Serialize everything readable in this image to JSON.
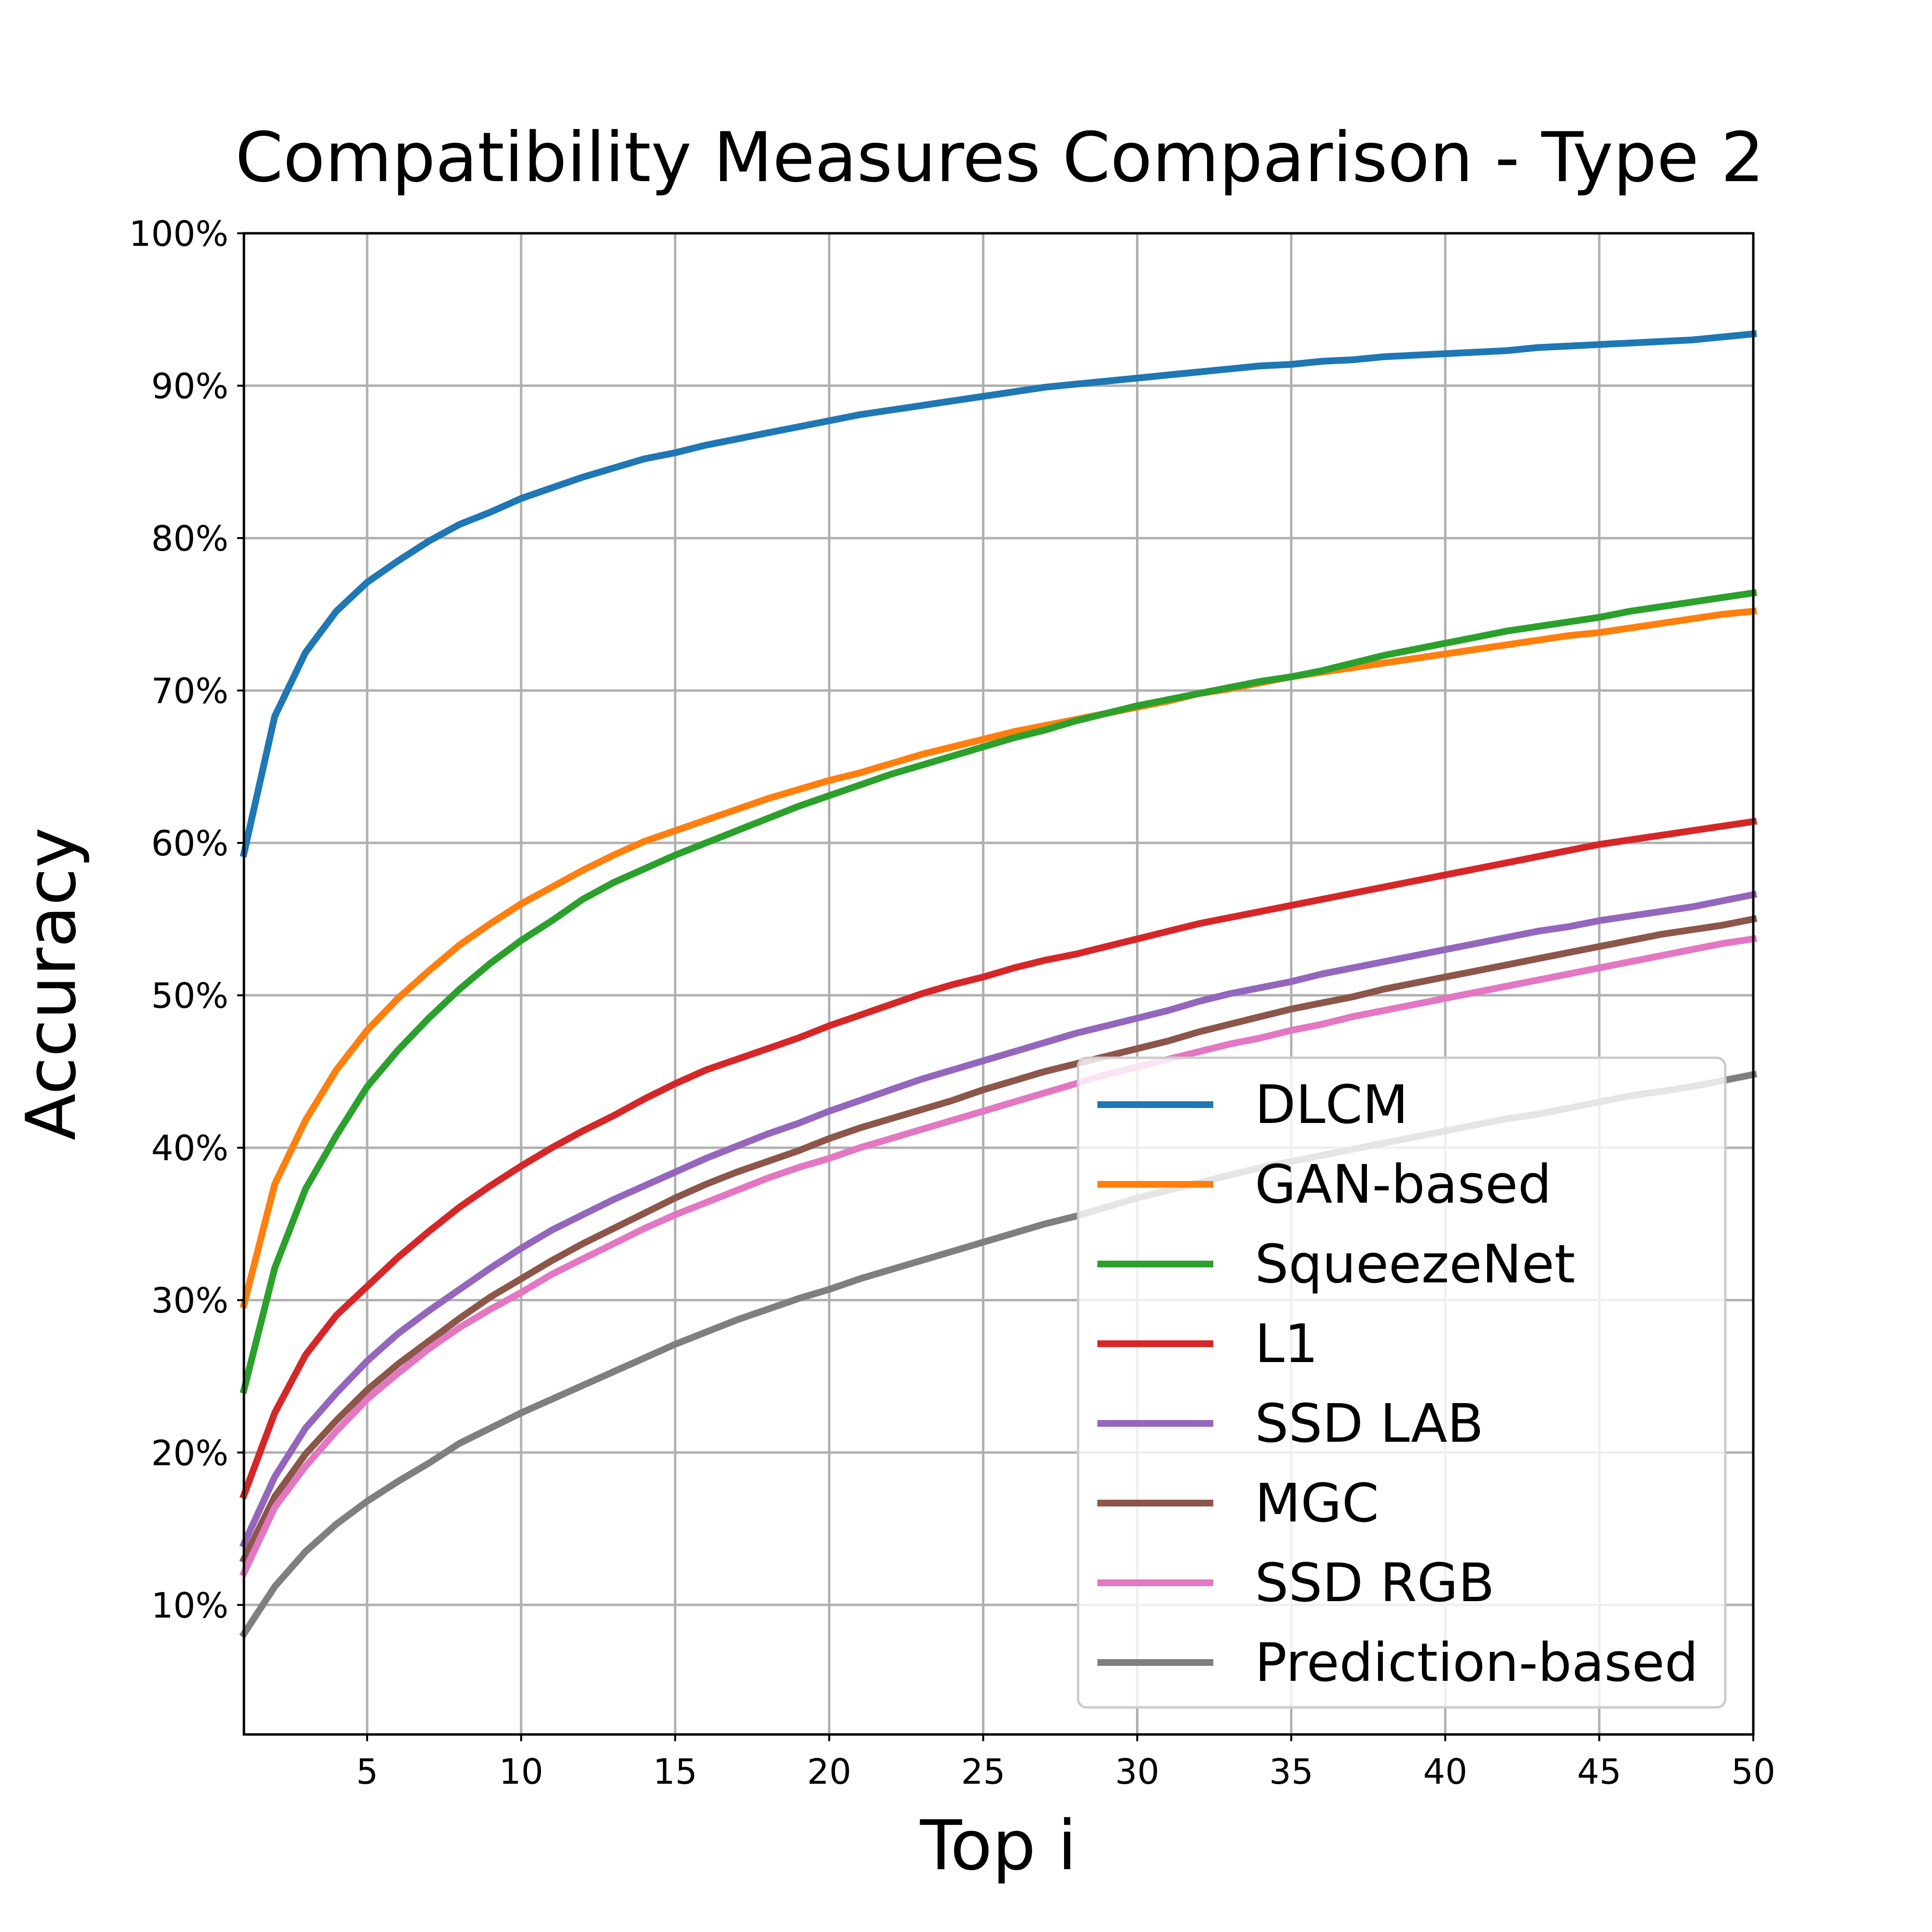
{
  "chart_data": {
    "type": "line",
    "title": "Compatibility Measures Comparison - Type 2",
    "xlabel": "Top i",
    "ylabel": "Accuracy",
    "xlim": [
      1,
      50
    ],
    "ylim": [
      0.015,
      1.0
    ],
    "grid": true,
    "legend_position": "lower-right",
    "x_ticks": [
      5,
      10,
      15,
      20,
      25,
      30,
      35,
      40,
      45,
      50
    ],
    "x_tick_labels": [
      "5",
      "10",
      "15",
      "20",
      "25",
      "30",
      "35",
      "40",
      "45",
      "50"
    ],
    "y_ticks": [
      0.1,
      0.2,
      0.3,
      0.4,
      0.5,
      0.6,
      0.7,
      0.8,
      0.9,
      1.0
    ],
    "y_tick_labels": [
      "10%",
      "20%",
      "30%",
      "40%",
      "50%",
      "60%",
      "70%",
      "80%",
      "90%",
      "100%"
    ],
    "x": [
      1,
      2,
      3,
      4,
      5,
      6,
      7,
      8,
      9,
      10,
      11,
      12,
      13,
      14,
      15,
      16,
      17,
      18,
      19,
      20,
      21,
      22,
      23,
      24,
      25,
      26,
      27,
      28,
      29,
      30,
      31,
      32,
      33,
      34,
      35,
      36,
      37,
      38,
      39,
      40,
      41,
      42,
      43,
      44,
      45,
      46,
      47,
      48,
      49,
      50
    ],
    "series": [
      {
        "name": "DLCM",
        "color": "#1f77b4",
        "values": [
          0.593,
          0.683,
          0.725,
          0.752,
          0.771,
          0.785,
          0.798,
          0.809,
          0.817,
          0.826,
          0.833,
          0.84,
          0.846,
          0.852,
          0.856,
          0.861,
          0.865,
          0.869,
          0.873,
          0.877,
          0.881,
          0.884,
          0.887,
          0.89,
          0.893,
          0.896,
          0.899,
          0.901,
          0.903,
          0.905,
          0.907,
          0.909,
          0.911,
          0.913,
          0.914,
          0.916,
          0.917,
          0.919,
          0.92,
          0.921,
          0.922,
          0.923,
          0.925,
          0.926,
          0.927,
          0.928,
          0.929,
          0.93,
          0.932,
          0.934
        ]
      },
      {
        "name": "GAN-based",
        "color": "#ff7f0e",
        "values": [
          0.297,
          0.376,
          0.418,
          0.451,
          0.477,
          0.498,
          0.516,
          0.533,
          0.547,
          0.56,
          0.571,
          0.582,
          0.592,
          0.601,
          0.608,
          0.615,
          0.622,
          0.629,
          0.635,
          0.641,
          0.646,
          0.652,
          0.658,
          0.663,
          0.668,
          0.673,
          0.677,
          0.681,
          0.685,
          0.689,
          0.693,
          0.698,
          0.701,
          0.705,
          0.709,
          0.712,
          0.715,
          0.718,
          0.721,
          0.724,
          0.727,
          0.73,
          0.733,
          0.736,
          0.738,
          0.741,
          0.744,
          0.747,
          0.75,
          0.752
        ]
      },
      {
        "name": "SqueezeNet",
        "color": "#2ca02c",
        "values": [
          0.241,
          0.321,
          0.373,
          0.408,
          0.44,
          0.464,
          0.485,
          0.504,
          0.521,
          0.536,
          0.549,
          0.563,
          0.574,
          0.583,
          0.592,
          0.6,
          0.608,
          0.616,
          0.624,
          0.631,
          0.638,
          0.645,
          0.651,
          0.657,
          0.663,
          0.669,
          0.674,
          0.68,
          0.685,
          0.69,
          0.694,
          0.698,
          0.702,
          0.706,
          0.709,
          0.713,
          0.718,
          0.723,
          0.727,
          0.731,
          0.735,
          0.739,
          0.742,
          0.745,
          0.748,
          0.752,
          0.755,
          0.758,
          0.761,
          0.764
        ]
      },
      {
        "name": "L1",
        "color": "#d62728",
        "values": [
          0.172,
          0.226,
          0.264,
          0.29,
          0.309,
          0.328,
          0.345,
          0.361,
          0.375,
          0.388,
          0.4,
          0.411,
          0.421,
          0.432,
          0.442,
          0.451,
          0.458,
          0.465,
          0.472,
          0.48,
          0.487,
          0.494,
          0.501,
          0.507,
          0.512,
          0.518,
          0.523,
          0.527,
          0.532,
          0.537,
          0.542,
          0.547,
          0.551,
          0.555,
          0.559,
          0.563,
          0.567,
          0.571,
          0.575,
          0.579,
          0.583,
          0.587,
          0.591,
          0.595,
          0.599,
          0.602,
          0.605,
          0.608,
          0.611,
          0.614
        ]
      },
      {
        "name": "SSD LAB",
        "color": "#9467bd",
        "values": [
          0.14,
          0.184,
          0.216,
          0.239,
          0.26,
          0.278,
          0.293,
          0.307,
          0.321,
          0.334,
          0.346,
          0.356,
          0.366,
          0.375,
          0.384,
          0.393,
          0.401,
          0.409,
          0.416,
          0.424,
          0.431,
          0.438,
          0.445,
          0.451,
          0.457,
          0.463,
          0.469,
          0.475,
          0.48,
          0.485,
          0.49,
          0.496,
          0.501,
          0.505,
          0.509,
          0.514,
          0.518,
          0.522,
          0.526,
          0.53,
          0.534,
          0.538,
          0.542,
          0.545,
          0.549,
          0.552,
          0.555,
          0.558,
          0.562,
          0.566
        ]
      },
      {
        "name": "MGC",
        "color": "#8c564b",
        "values": [
          0.13,
          0.171,
          0.199,
          0.221,
          0.241,
          0.258,
          0.273,
          0.288,
          0.302,
          0.314,
          0.326,
          0.337,
          0.347,
          0.357,
          0.367,
          0.376,
          0.384,
          0.391,
          0.398,
          0.406,
          0.413,
          0.419,
          0.425,
          0.431,
          0.438,
          0.444,
          0.45,
          0.455,
          0.46,
          0.465,
          0.47,
          0.476,
          0.481,
          0.486,
          0.491,
          0.495,
          0.499,
          0.504,
          0.508,
          0.512,
          0.516,
          0.52,
          0.524,
          0.528,
          0.532,
          0.536,
          0.54,
          0.543,
          0.546,
          0.55
        ]
      },
      {
        "name": "SSD RGB",
        "color": "#e377c2",
        "values": [
          0.121,
          0.164,
          0.191,
          0.214,
          0.235,
          0.252,
          0.268,
          0.282,
          0.294,
          0.305,
          0.317,
          0.327,
          0.337,
          0.347,
          0.356,
          0.364,
          0.372,
          0.38,
          0.387,
          0.393,
          0.4,
          0.406,
          0.412,
          0.418,
          0.424,
          0.43,
          0.436,
          0.442,
          0.448,
          0.453,
          0.458,
          0.463,
          0.468,
          0.472,
          0.477,
          0.481,
          0.486,
          0.49,
          0.494,
          0.498,
          0.502,
          0.506,
          0.51,
          0.514,
          0.518,
          0.522,
          0.526,
          0.53,
          0.534,
          0.537
        ]
      },
      {
        "name": "Prediction-based",
        "color": "#7f7f7f",
        "values": [
          0.081,
          0.112,
          0.135,
          0.153,
          0.168,
          0.181,
          0.193,
          0.206,
          0.216,
          0.226,
          0.235,
          0.244,
          0.253,
          0.262,
          0.271,
          0.279,
          0.287,
          0.294,
          0.301,
          0.307,
          0.314,
          0.32,
          0.326,
          0.332,
          0.338,
          0.344,
          0.35,
          0.355,
          0.361,
          0.367,
          0.372,
          0.377,
          0.382,
          0.387,
          0.391,
          0.395,
          0.399,
          0.403,
          0.407,
          0.411,
          0.415,
          0.419,
          0.422,
          0.426,
          0.43,
          0.434,
          0.437,
          0.44,
          0.444,
          0.448
        ]
      }
    ]
  }
}
